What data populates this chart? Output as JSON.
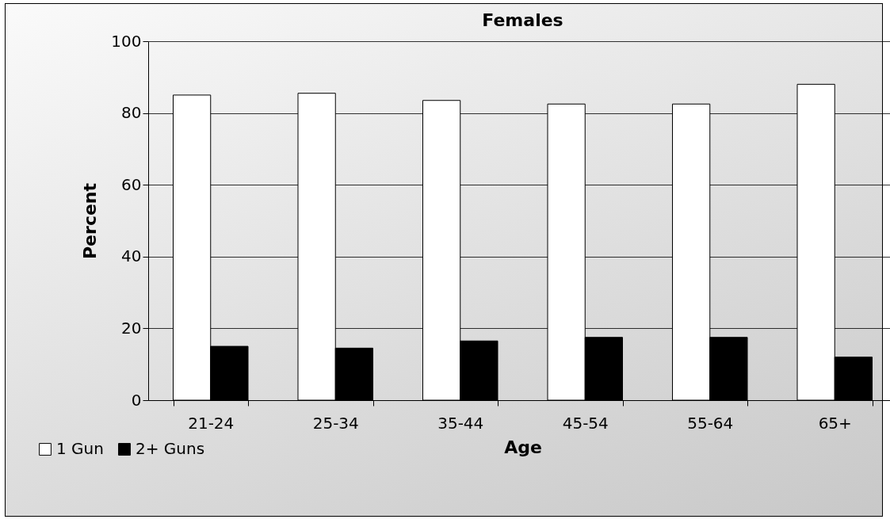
{
  "chart_data": {
    "type": "bar",
    "title": "Females",
    "xlabel": "Age",
    "ylabel": "Percent",
    "categories": [
      "21-24",
      "25-34",
      "35-44",
      "45-54",
      "55-64",
      "65+"
    ],
    "series": [
      {
        "name": "1 Gun",
        "color": "#ffffff",
        "values": [
          85,
          85.5,
          83.5,
          82.5,
          82.5,
          88
        ]
      },
      {
        "name": "2+ Guns",
        "color": "#000000",
        "values": [
          15,
          14.5,
          16.5,
          17.5,
          17.5,
          12
        ]
      }
    ],
    "ylim": [
      0,
      100
    ],
    "yticks": [
      0,
      20,
      40,
      60,
      80,
      100
    ],
    "grid": "y",
    "legend": "bottom left"
  }
}
